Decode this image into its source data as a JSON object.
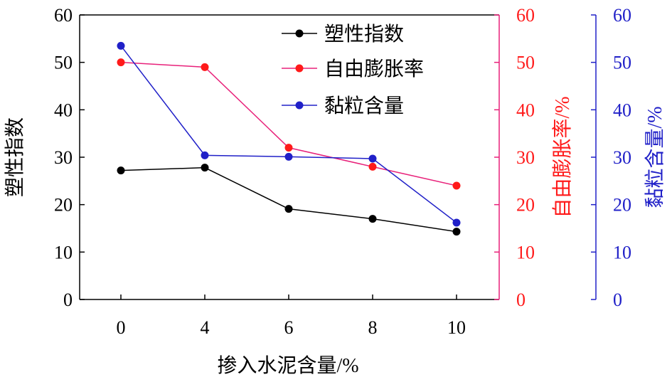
{
  "chart_data": {
    "type": "line",
    "x": [
      0,
      4,
      6,
      8,
      10
    ],
    "xlabel": "掺入水泥含量/%",
    "xlim": [
      0,
      10
    ],
    "series": [
      {
        "name": "塑性指数",
        "axis": "left",
        "color": "#000000",
        "values": [
          27.2,
          27.8,
          19.1,
          17.0,
          14.3
        ]
      },
      {
        "name": "自由膨胀率",
        "axis": "right1",
        "color": "#ff1a1a",
        "line_color": "#e8217a",
        "values": [
          50,
          49,
          32,
          28,
          24
        ]
      },
      {
        "name": "黏粒含量",
        "axis": "right2",
        "color": "#2020c8",
        "values": [
          53.5,
          30.4,
          30.1,
          29.7,
          16.2
        ]
      }
    ],
    "axes": {
      "left": {
        "label": "塑性指数",
        "ylim": [
          0,
          60
        ],
        "ticks": [
          "0",
          "10",
          "20",
          "30",
          "40",
          "50",
          "60"
        ],
        "color": "#000000"
      },
      "right1": {
        "label": "自由膨胀率/%",
        "ylim": [
          0,
          60
        ],
        "ticks": [
          "0",
          "10",
          "20",
          "30",
          "40",
          "50",
          "60"
        ],
        "color": "#ff1a1a",
        "axis_color": "#e8217a"
      },
      "right2": {
        "label": "黏粒含量/%",
        "ylim": [
          0,
          60
        ],
        "ticks": [
          "0",
          "10",
          "20",
          "30",
          "40",
          "50",
          "60"
        ],
        "color": "#2020c8"
      }
    },
    "x_ticks": [
      "0",
      "4",
      "6",
      "8",
      "10"
    ],
    "legend_position": "top-center",
    "grid": false
  }
}
